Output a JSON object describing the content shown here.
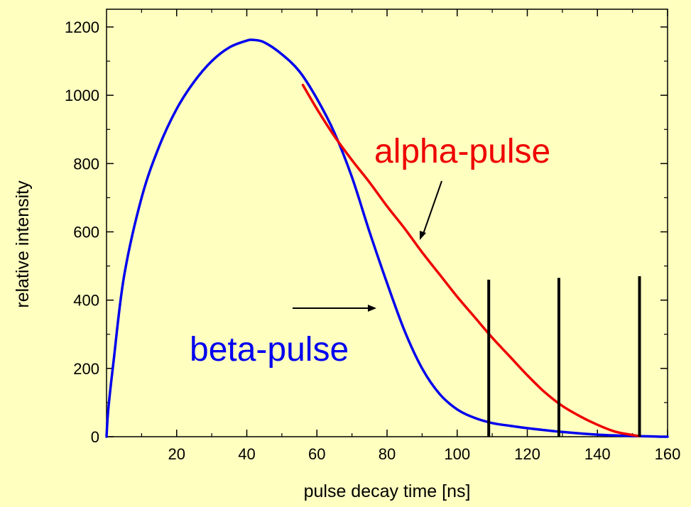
{
  "chart_data": {
    "type": "line",
    "title": "",
    "xlabel": "pulse decay time [ns]",
    "ylabel": "relative intensity",
    "xlim": [
      0,
      160
    ],
    "ylim": [
      0,
      1200
    ],
    "x_ticks": [
      20,
      40,
      60,
      80,
      100,
      120,
      140,
      160
    ],
    "y_ticks": [
      0,
      200,
      400,
      600,
      800,
      1000,
      1200
    ],
    "grid": false,
    "legend": "none",
    "colors": {
      "background": "#FFFFC0",
      "alpha": "#EE0000",
      "beta": "#0000EE",
      "markers": "#000000"
    },
    "series": [
      {
        "name": "beta-pulse",
        "color": "#0000EE",
        "x": [
          0,
          0.5,
          2,
          5,
          10,
          15,
          20,
          25,
          30,
          35,
          40,
          42,
          45,
          50,
          55,
          60,
          65,
          70,
          75,
          80,
          85,
          90,
          95,
          100,
          105,
          110,
          115,
          120,
          130,
          140,
          150,
          155,
          158,
          160
        ],
        "y": [
          0,
          80,
          220,
          470,
          700,
          850,
          960,
          1040,
          1100,
          1140,
          1160,
          1162,
          1155,
          1120,
          1070,
          990,
          890,
          760,
          600,
          450,
          310,
          200,
          125,
          80,
          55,
          40,
          32,
          25,
          14,
          6,
          2,
          1,
          0,
          0
        ]
      },
      {
        "name": "alpha-pulse",
        "color": "#EE0000",
        "x": [
          56,
          60,
          65,
          70,
          75,
          80,
          85,
          90,
          95,
          100,
          105,
          110,
          115,
          120,
          125,
          130,
          135,
          140,
          145,
          150,
          152
        ],
        "y": [
          1030,
          960,
          880,
          810,
          745,
          675,
          610,
          540,
          475,
          410,
          350,
          290,
          235,
          180,
          130,
          90,
          60,
          35,
          15,
          5,
          2
        ]
      }
    ],
    "markers": [
      {
        "x": 109,
        "y_top": 460
      },
      {
        "x": 129,
        "y_top": 465
      },
      {
        "x": 152,
        "y_top": 470
      }
    ],
    "annotations": [
      {
        "text": "alpha-pulse",
        "color": "#EE0000"
      },
      {
        "text": "beta-pulse",
        "color": "#0000EE"
      }
    ]
  }
}
